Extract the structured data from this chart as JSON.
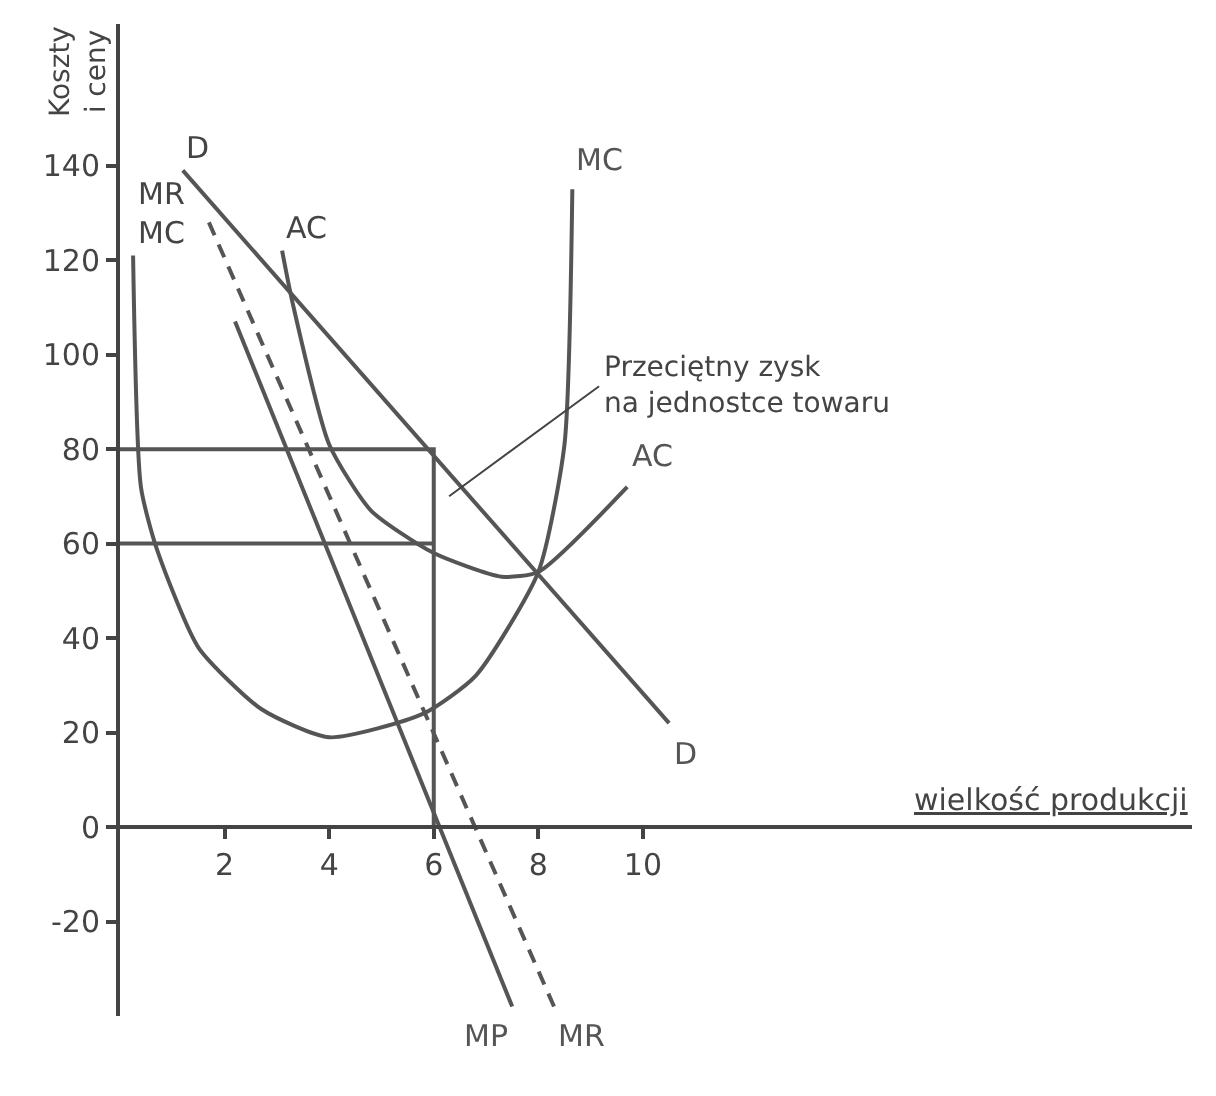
{
  "chart_data": {
    "type": "line",
    "xlabel": "wielkość produkcji",
    "ylabel": "Koszty\ni ceny",
    "xlim": [
      0,
      20.5
    ],
    "ylim": [
      -40,
      170
    ],
    "xticks": [
      2,
      4,
      6,
      8,
      10
    ],
    "yticks": [
      -20,
      0,
      20,
      40,
      60,
      80,
      100,
      120,
      140
    ],
    "legend": false,
    "marker": "none",
    "series": [
      {
        "name": "D",
        "color": "#555555",
        "x": [
          1.2,
          10.5
        ],
        "values": [
          139,
          22
        ]
      },
      {
        "name": "MR",
        "color": "#555555",
        "line_style": "dashed",
        "x": [
          1.7,
          8.3
        ],
        "values": [
          128,
          -38
        ]
      },
      {
        "name": "MP",
        "color": "#555555",
        "x": [
          2.2,
          7.5
        ],
        "values": [
          107,
          -38
        ]
      },
      {
        "name": "MC",
        "color": "#555555",
        "x": [
          0.25,
          0.4,
          0.7,
          1.5,
          2.7,
          4,
          5.8,
          6.8,
          8,
          8.5,
          8.65
        ],
        "values": [
          121,
          72,
          59,
          38,
          25,
          19,
          24,
          32,
          54,
          81,
          135
        ]
      },
      {
        "name": "AC",
        "color": "#555555",
        "x": [
          3.1,
          3.3,
          4,
          4.8,
          6,
          7.3,
          8,
          9.7
        ],
        "values": [
          122,
          111,
          81,
          67,
          58,
          53,
          54,
          72
        ]
      },
      {
        "color": "#555555",
        "x": [
          0,
          6,
          6
        ],
        "values": [
          80,
          80,
          0
        ]
      },
      {
        "color": "#555555",
        "x": [
          0,
          6
        ],
        "values": [
          60,
          60
        ]
      }
    ],
    "annotations": [
      {
        "text": "D",
        "x": 1.2,
        "y": 139
      },
      {
        "text": "AC",
        "x": 3.1,
        "y": 122
      },
      {
        "text": "MR\nMC",
        "x": 0.25,
        "y": 121
      },
      "Przeciętny zysk\nna jednostce towaru"
    ]
  }
}
